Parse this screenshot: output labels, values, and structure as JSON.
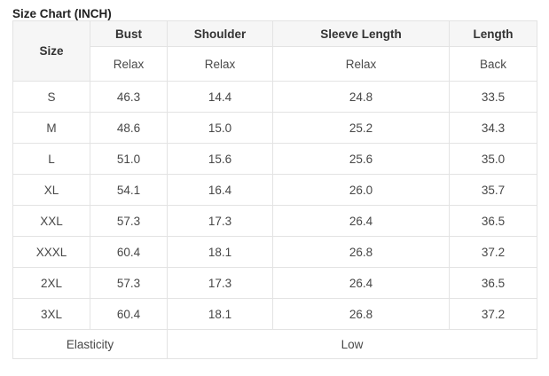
{
  "title": "Size Chart (INCH)",
  "colors": {
    "header_bg": "#f6f6f6",
    "border": "#e3e3e3",
    "title_text": "#222222",
    "header_text": "#333333",
    "cell_text": "#474747",
    "page_bg": "#ffffff"
  },
  "table": {
    "header": {
      "size": "Size",
      "columns": [
        {
          "label": "Bust",
          "sub": "Relax"
        },
        {
          "label": "Shoulder",
          "sub": "Relax"
        },
        {
          "label": "Sleeve Length",
          "sub": "Relax"
        },
        {
          "label": "Length",
          "sub": "Back"
        }
      ]
    },
    "rows": [
      {
        "size": "S",
        "bust": "46.3",
        "shoulder": "14.4",
        "sleeve_length": "24.8",
        "length": "33.5"
      },
      {
        "size": "M",
        "bust": "48.6",
        "shoulder": "15.0",
        "sleeve_length": "25.2",
        "length": "34.3"
      },
      {
        "size": "L",
        "bust": "51.0",
        "shoulder": "15.6",
        "sleeve_length": "25.6",
        "length": "35.0"
      },
      {
        "size": "XL",
        "bust": "54.1",
        "shoulder": "16.4",
        "sleeve_length": "26.0",
        "length": "35.7"
      },
      {
        "size": "XXL",
        "bust": "57.3",
        "shoulder": "17.3",
        "sleeve_length": "26.4",
        "length": "36.5"
      },
      {
        "size": "XXXL",
        "bust": "60.4",
        "shoulder": "18.1",
        "sleeve_length": "26.8",
        "length": "37.2"
      },
      {
        "size": "2XL",
        "bust": "57.3",
        "shoulder": "17.3",
        "sleeve_length": "26.4",
        "length": "36.5"
      },
      {
        "size": "3XL",
        "bust": "60.4",
        "shoulder": "18.1",
        "sleeve_length": "26.8",
        "length": "37.2"
      }
    ],
    "footer": {
      "label": "Elasticity",
      "value": "Low"
    }
  }
}
